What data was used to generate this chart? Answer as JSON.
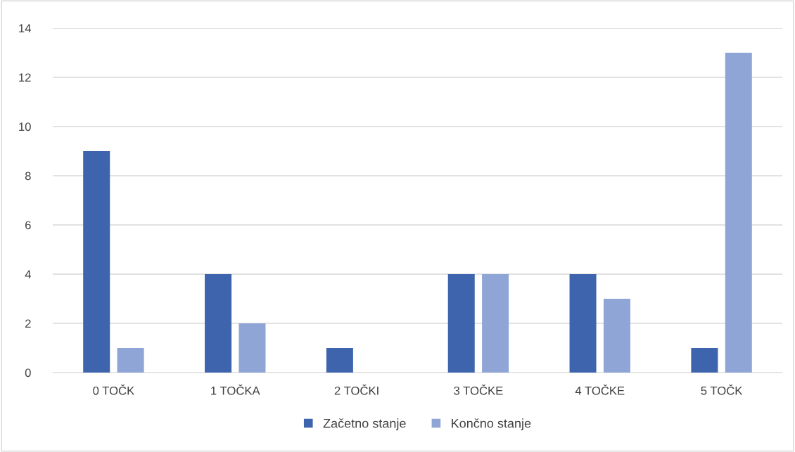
{
  "chart_data": {
    "type": "bar",
    "categories": [
      "0 TOČK",
      "1 TOČKA",
      "2 TOČKI",
      "3 TOČKE",
      "4 TOČKE",
      "5 TOČK"
    ],
    "series": [
      {
        "name": "Začetno stanje",
        "color": "#3d64ad",
        "values": [
          9,
          4,
          1,
          4,
          4,
          1
        ]
      },
      {
        "name": "Končno stanje",
        "color": "#8fa5d6",
        "values": [
          1,
          2,
          0,
          4,
          3,
          13
        ]
      }
    ],
    "ylim": [
      0,
      14
    ],
    "yticks": [
      0,
      2,
      4,
      6,
      8,
      10,
      12,
      14
    ],
    "grid": "y",
    "legend": "bottom"
  }
}
